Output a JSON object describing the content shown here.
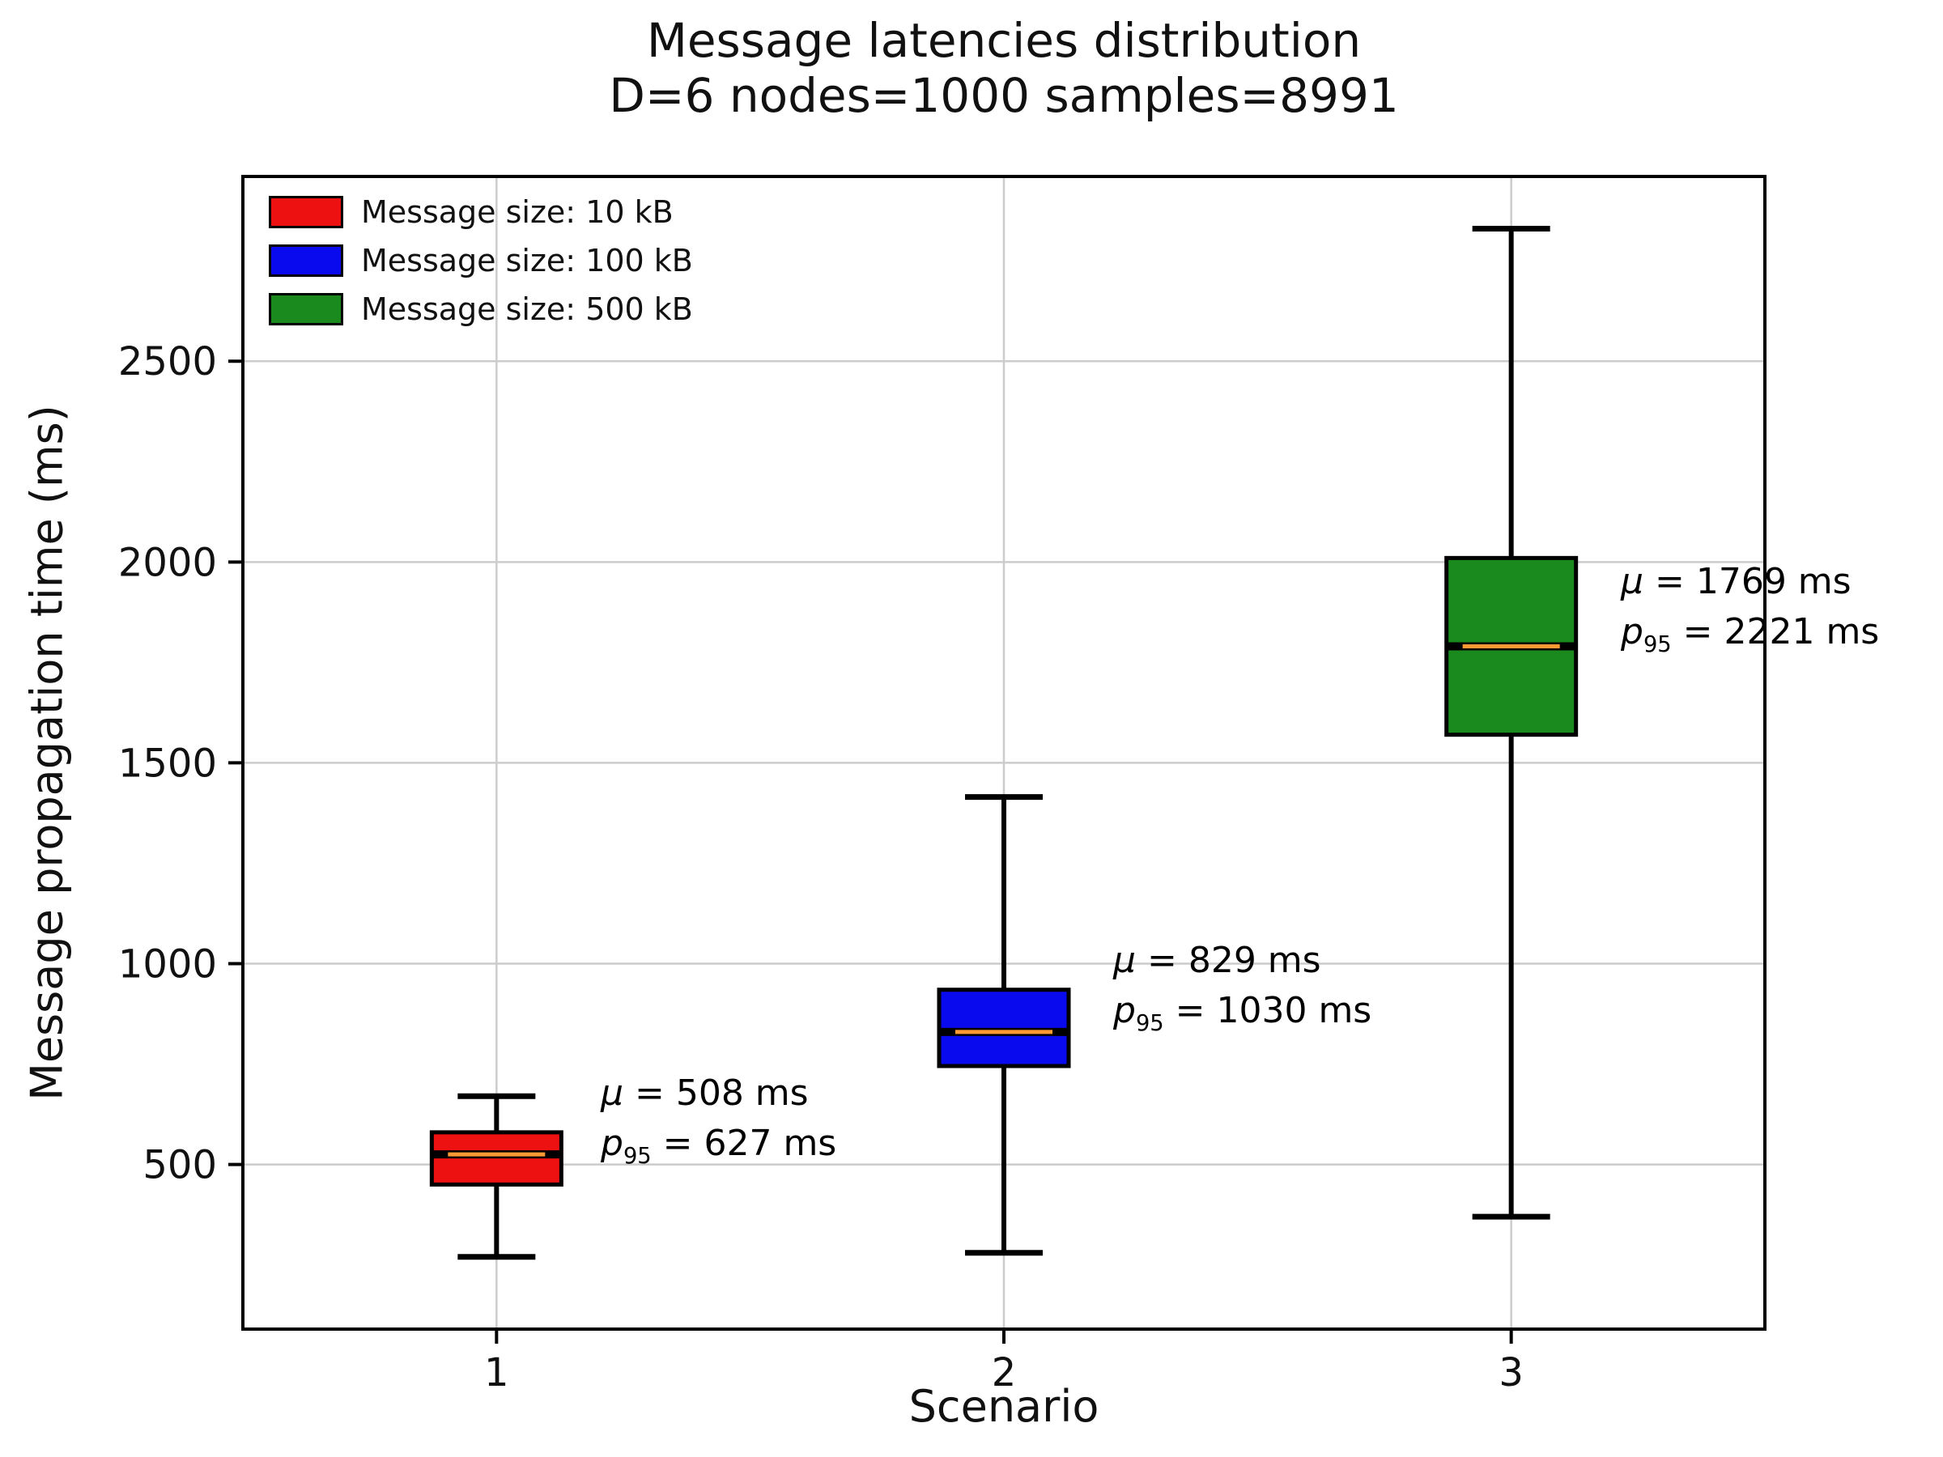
{
  "title": {
    "line1": "Message latencies distribution",
    "line2": "D=6 nodes=1000 samples=8991"
  },
  "axes": {
    "x_label": "Scenario",
    "y_label": "Message propagation time (ms)",
    "x_tick_labels": [
      "1",
      "2",
      "3"
    ],
    "y_ticks": [
      500,
      1000,
      1500,
      2000,
      2500
    ]
  },
  "legend": [
    {
      "label": "Message size: 10 kB",
      "color": "#ee1111"
    },
    {
      "label": "Message size: 100 kB",
      "color": "#0a0aee"
    },
    {
      "label": "Message size: 500 kB",
      "color": "#1a8a1e"
    }
  ],
  "style": {
    "grid_color": "#cccccc",
    "median_color": "#ff9933",
    "spine_color": "#000000"
  },
  "chart_data": {
    "type": "boxplot",
    "title": "Message latencies distribution D=6 nodes=1000 samples=8991",
    "xlabel": "Scenario",
    "ylabel": "Message propagation time (ms)",
    "categories": [
      "1",
      "2",
      "3"
    ],
    "ylim": [
      90,
      2960
    ],
    "grid": true,
    "legend_position": "upper left",
    "series": [
      {
        "name": "Message size: 10 kB",
        "color": "#ee1111",
        "whisker_low": 270,
        "q1": 450,
        "median": 525,
        "q3": 580,
        "whisker_high": 670,
        "mean_ms": 508,
        "p95_ms": 627
      },
      {
        "name": "Message size: 100 kB",
        "color": "#0a0aee",
        "whisker_low": 280,
        "q1": 745,
        "median": 830,
        "q3": 935,
        "whisker_high": 1415,
        "mean_ms": 829,
        "p95_ms": 1030
      },
      {
        "name": "Message size: 500 kB",
        "color": "#1a8a1e",
        "whisker_low": 370,
        "q1": 1570,
        "median": 1790,
        "q3": 2010,
        "whisker_high": 2830,
        "mean_ms": 1769,
        "p95_ms": 2221
      }
    ]
  },
  "annotations": [
    {
      "mu_base": "μ",
      "mu_rest": " =  508 ms",
      "p_base": "p",
      "p_sub": "95",
      "p_rest": " =  627 ms"
    },
    {
      "mu_base": "μ",
      "mu_rest": " =  829 ms",
      "p_base": "p",
      "p_sub": "95",
      "p_rest": " =  1030 ms"
    },
    {
      "mu_base": "μ",
      "mu_rest": " =  1769 ms",
      "p_base": "p",
      "p_sub": "95",
      "p_rest": " =  2221 ms"
    }
  ]
}
